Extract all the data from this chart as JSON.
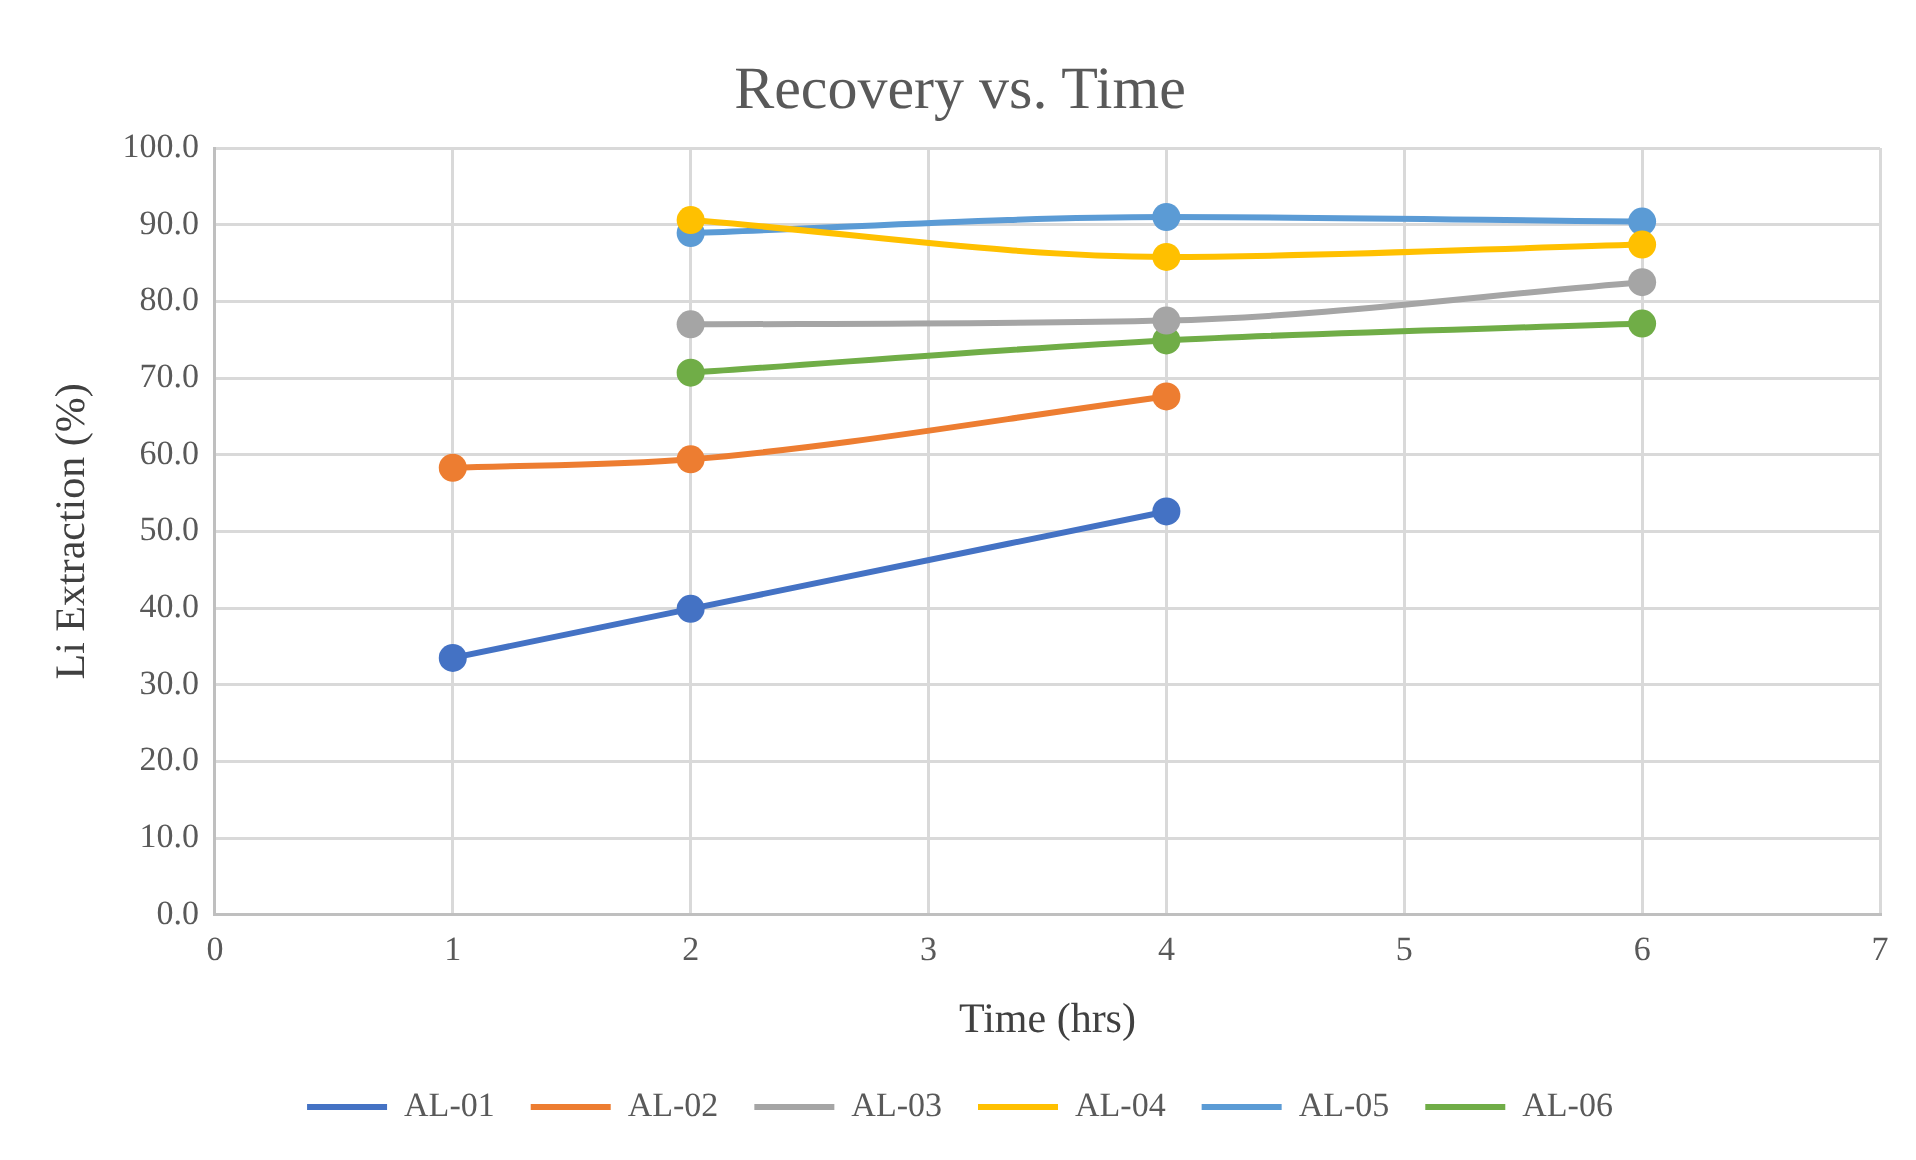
{
  "chart_data": {
    "type": "line",
    "title": "Recovery vs. Time",
    "xlabel": "Time (hrs)",
    "ylabel": "Li Extraction (%)",
    "xlim": [
      0,
      7
    ],
    "xticks": [
      0,
      1,
      2,
      3,
      4,
      5,
      6,
      7
    ],
    "ylim": [
      0,
      100
    ],
    "yticks": [
      {
        "value": 0,
        "label": "0.0"
      },
      {
        "value": 10,
        "label": "10.0"
      },
      {
        "value": 20,
        "label": "20.0"
      },
      {
        "value": 30,
        "label": "30.0"
      },
      {
        "value": 40,
        "label": "40.0"
      },
      {
        "value": 50,
        "label": "50.0"
      },
      {
        "value": 60,
        "label": "60.0"
      },
      {
        "value": 70,
        "label": "70.0"
      },
      {
        "value": 80,
        "label": "80.0"
      },
      {
        "value": 90,
        "label": "90.0"
      },
      {
        "value": 100,
        "label": "100.0"
      }
    ],
    "grid": true,
    "legend": "bottom",
    "marker": "circle",
    "line_style": "solid",
    "series": [
      {
        "name": "AL-01",
        "color": "#4472c4",
        "x": [
          1,
          2,
          4
        ],
        "values": [
          33.5,
          39.9,
          52.6
        ]
      },
      {
        "name": "AL-02",
        "color": "#ed7d31",
        "x": [
          1,
          2,
          4
        ],
        "values": [
          58.3,
          59.4,
          67.6
        ]
      },
      {
        "name": "AL-03",
        "color": "#a5a5a5",
        "x": [
          2,
          4,
          6
        ],
        "values": [
          77.0,
          77.5,
          82.5
        ]
      },
      {
        "name": "AL-04",
        "color": "#ffc000",
        "x": [
          2,
          4,
          6
        ],
        "values": [
          90.6,
          85.8,
          87.4
        ]
      },
      {
        "name": "AL-05",
        "color": "#5b9bd5",
        "x": [
          2,
          4,
          6
        ],
        "values": [
          88.9,
          91.0,
          90.4
        ]
      },
      {
        "name": "AL-06",
        "color": "#70ad47",
        "x": [
          2,
          4,
          6
        ],
        "values": [
          70.7,
          74.9,
          77.1
        ]
      }
    ]
  }
}
